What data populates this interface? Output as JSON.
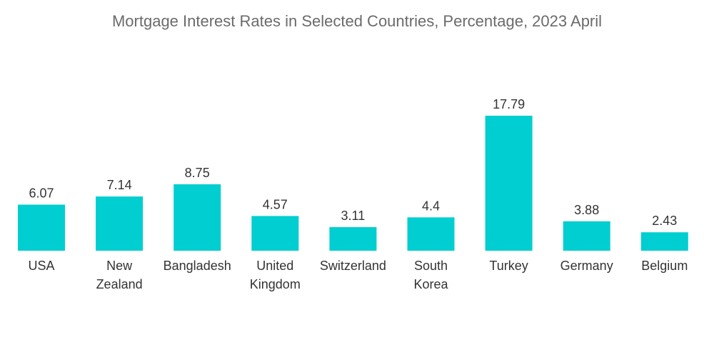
{
  "chart_data": {
    "type": "bar",
    "title": "Mortgage Interest Rates in Selected Countries, Percentage, 2023 April",
    "categories": [
      [
        "USA"
      ],
      [
        "New",
        "Zealand"
      ],
      [
        "Bangladesh"
      ],
      [
        "United",
        "Kingdom"
      ],
      [
        "Switzerland"
      ],
      [
        "South",
        "Korea"
      ],
      [
        "Turkey"
      ],
      [
        "Germany"
      ],
      [
        "Belgium"
      ]
    ],
    "values": [
      6.07,
      7.14,
      8.75,
      4.57,
      3.11,
      4.4,
      17.79,
      3.88,
      2.43
    ],
    "value_labels": [
      "6.07",
      "7.14",
      "8.75",
      "4.57",
      "3.11",
      "4.4",
      "17.79",
      "3.88",
      "2.43"
    ],
    "xlabel": "",
    "ylabel": "",
    "ylim": [
      0,
      17.79
    ],
    "grid": false,
    "legend": "none",
    "bar_color": "#00ced1"
  }
}
